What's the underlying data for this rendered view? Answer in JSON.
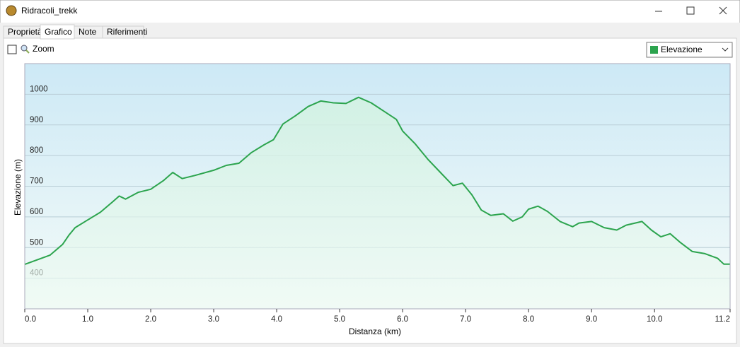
{
  "window": {
    "title": "Ridracoli_trekk",
    "tabs": [
      "Proprietà",
      "Grafico",
      "Note",
      "Riferimenti"
    ],
    "zoom_label": "Zoom"
  },
  "chart_data": {
    "type": "area",
    "x_label": "Distanza (km)",
    "y_label": "Elevazione (m)",
    "x": [
      0,
      0.2,
      0.4,
      0.6,
      0.7,
      0.8,
      1.0,
      1.2,
      1.4,
      1.5,
      1.6,
      1.8,
      2.0,
      2.2,
      2.35,
      2.5,
      2.7,
      3.0,
      3.2,
      3.4,
      3.6,
      3.8,
      3.95,
      4.1,
      4.3,
      4.5,
      4.7,
      4.9,
      5.1,
      5.3,
      5.5,
      5.7,
      5.9,
      6.0,
      6.2,
      6.4,
      6.6,
      6.8,
      6.95,
      7.1,
      7.25,
      7.4,
      7.6,
      7.75,
      7.9,
      8.0,
      8.15,
      8.3,
      8.5,
      8.7,
      8.8,
      9.0,
      9.2,
      9.4,
      9.55,
      9.8,
      9.95,
      10.1,
      10.25,
      10.4,
      10.6,
      10.8,
      11.0,
      11.1,
      11.2
    ],
    "series": [
      {
        "name": "Elevazione",
        "color": "#2ca44e",
        "values": [
          445,
          460,
          475,
          510,
          540,
          565,
          590,
          615,
          650,
          668,
          658,
          680,
          690,
          718,
          745,
          725,
          735,
          752,
          768,
          775,
          810,
          835,
          852,
          903,
          930,
          960,
          978,
          972,
          970,
          990,
          972,
          945,
          918,
          880,
          838,
          788,
          745,
          702,
          710,
          672,
          622,
          605,
          610,
          586,
          600,
          625,
          635,
          618,
          585,
          568,
          580,
          585,
          565,
          557,
          573,
          585,
          557,
          535,
          545,
          518,
          487,
          480,
          465,
          446,
          446
        ]
      }
    ],
    "xlim": [
      0,
      11.2
    ],
    "xticks": [
      {
        "value": 0,
        "label": "0.0"
      },
      {
        "value": 1,
        "label": "1.0"
      },
      {
        "value": 2,
        "label": "2.0"
      },
      {
        "value": 3,
        "label": "3.0"
      },
      {
        "value": 4,
        "label": "4.0"
      },
      {
        "value": 5,
        "label": "5.0"
      },
      {
        "value": 6,
        "label": "6.0"
      },
      {
        "value": 7,
        "label": "7.0"
      },
      {
        "value": 8,
        "label": "8.0"
      },
      {
        "value": 9,
        "label": "9.0"
      },
      {
        "value": 10,
        "label": "10.0"
      },
      {
        "value": 11.2,
        "label": "11.2"
      }
    ],
    "ylim": [
      300,
      1100
    ],
    "yticks": [
      400,
      500,
      600,
      700,
      800,
      900,
      1000
    ],
    "grid": true
  }
}
